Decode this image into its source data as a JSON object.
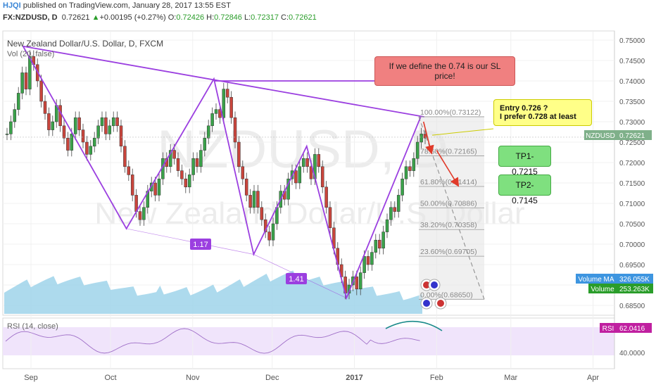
{
  "header": {
    "logo": "HJQI",
    "published": "published on TradingView.com, January 28, 2017 13:55 EST",
    "symbol": "FX:NZDUSD, D",
    "last": "0.72621",
    "change": "+0.00195 (+0.27%)",
    "ohlc": {
      "o_label": "O:",
      "o": "0.72426",
      "h_label": "H:",
      "h": "0.72846",
      "l_label": "L:",
      "l": "0.72317",
      "c_label": "C:",
      "c": "0.72621"
    }
  },
  "plot_title": "New Zealand Dollar/U.S. Dollar, D, FXCM",
  "vol_title": "Vol (20, false)",
  "rsi_title": "RSI (14, close)",
  "watermark": {
    "symbol": "NZDUSD, D",
    "name": "New Zealand Dollar/U.S. Dollar"
  },
  "annotations": {
    "sl_note": "If we define the 0.74 is our SL price!",
    "entry_line1": "Entry 0.726 ?",
    "entry_line2": "I prefer 0.728 at least",
    "tp1": "TP1-0.7215",
    "tp2": "TP2-0.7145",
    "ratio1": "1.17",
    "ratio2": "1.41"
  },
  "badges": {
    "price_label": "NZDUSD",
    "price_value": "0.72621",
    "volma_label": "Volume MA",
    "volma_value": "326.055K",
    "vol_label": "Volume",
    "vol_value": "253.263K",
    "rsi_label": "RSI",
    "rsi_value": "62.0416"
  },
  "colors": {
    "pattern": "#9b3fe0",
    "fib": "#8a8a8a",
    "bull": "#3aa24a",
    "bear": "#c9453c",
    "volume": "#9fd3ea",
    "rsi": "#a070c8",
    "arrow": "#e03a2a",
    "callout_green": "#7fe07f",
    "callout_red": "#f08080",
    "callout_yellow": "#ffff88"
  },
  "chart_data": {
    "type": "candlestick",
    "symbol": "FX:NZDUSD",
    "timeframe": "D",
    "x_ticks": [
      "Sep",
      "Oct",
      "Nov",
      "Dec",
      "2017",
      "Feb",
      "Mar",
      "Apr"
    ],
    "y_ticks": [
      "0.75000",
      "0.74500",
      "0.74000",
      "0.73500",
      "0.73000",
      "0.72500",
      "0.72000",
      "0.71500",
      "0.71000",
      "0.70500",
      "0.70000",
      "0.69500",
      "0.69000",
      "0.68500"
    ],
    "ylim": [
      0.6835,
      0.752
    ],
    "rsi_ticks": [
      "40.0000"
    ],
    "current_price": 0.72621,
    "sl_level": 0.74,
    "fibonacci": [
      {
        "label": "100.00%(0.73122)",
        "value": 0.73122
      },
      {
        "label": "78.60%(0.72165)",
        "value": 0.72165
      },
      {
        "label": "61.80%(0.71414)",
        "value": 0.71414
      },
      {
        "label": "50.00%(0.70886)",
        "value": 0.70886
      },
      {
        "label": "38.20%(0.70358)",
        "value": 0.70358
      },
      {
        "label": "23.60%(0.69705)",
        "value": 0.69705
      },
      {
        "label": "0.00%(0.68650)",
        "value": 0.6865
      }
    ],
    "pattern_points": [
      {
        "date": "2016-08-29",
        "price": 0.7485
      },
      {
        "date": "2016-10-07",
        "price": 0.7038
      },
      {
        "date": "2016-11-09",
        "price": 0.7405
      },
      {
        "date": "2016-11-24",
        "price": 0.6975
      },
      {
        "date": "2016-12-14",
        "price": 0.724
      },
      {
        "date": "2016-12-29",
        "price": 0.6868
      },
      {
        "date": "2017-01-26",
        "price": 0.7312
      }
    ],
    "candles_close": [
      0.727,
      0.73,
      0.733,
      0.737,
      0.742,
      0.738,
      0.746,
      0.744,
      0.74,
      0.735,
      0.732,
      0.728,
      0.73,
      0.734,
      0.729,
      0.726,
      0.723,
      0.727,
      0.731,
      0.728,
      0.725,
      0.722,
      0.724,
      0.726,
      0.729,
      0.731,
      0.727,
      0.729,
      0.731,
      0.729,
      0.724,
      0.719,
      0.717,
      0.712,
      0.708,
      0.706,
      0.709,
      0.713,
      0.715,
      0.712,
      0.716,
      0.721,
      0.719,
      0.723,
      0.721,
      0.718,
      0.716,
      0.714,
      0.717,
      0.721,
      0.719,
      0.723,
      0.726,
      0.729,
      0.732,
      0.733,
      0.731,
      0.738,
      0.736,
      0.731,
      0.725,
      0.719,
      0.716,
      0.712,
      0.709,
      0.713,
      0.709,
      0.706,
      0.703,
      0.701,
      0.705,
      0.709,
      0.713,
      0.711,
      0.716,
      0.718,
      0.715,
      0.719,
      0.721,
      0.719,
      0.716,
      0.722,
      0.719,
      0.714,
      0.709,
      0.704,
      0.699,
      0.695,
      0.692,
      0.688,
      0.69,
      0.692,
      0.689,
      0.693,
      0.697,
      0.695,
      0.698,
      0.701,
      0.699,
      0.703,
      0.706,
      0.709,
      0.708,
      0.712,
      0.716,
      0.719,
      0.718,
      0.721,
      0.725,
      0.727,
      0.726
    ]
  }
}
